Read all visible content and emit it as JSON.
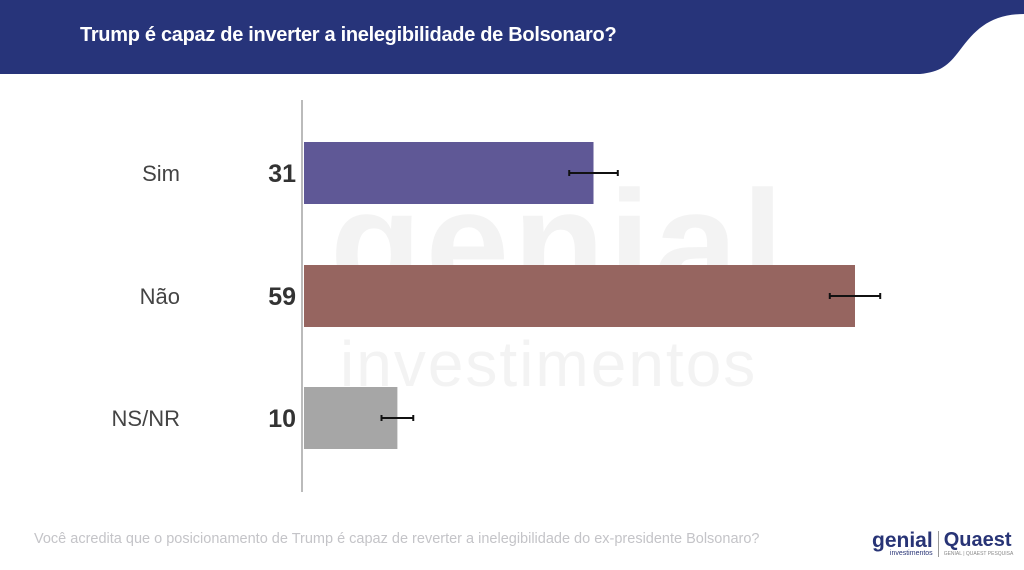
{
  "header": {
    "title": "Trump é capaz de inverter a inelegibilidade de Bolsonaro?",
    "color": "#27347a"
  },
  "footer": {
    "question": "Você acredita que o posicionamento de Trump é capaz de reverter a inelegibilidade do ex-presidente Bolsonaro?"
  },
  "watermark": {
    "line1": "genial",
    "line2": "investimentos"
  },
  "logos": {
    "genial": "genial",
    "genial_sub": "investimentos",
    "quaest": "Quaest",
    "quaest_sub": "GENIAL | QUAEST PESQUISA"
  },
  "chart_data": {
    "type": "bar",
    "orientation": "horizontal",
    "categories": [
      "Sim",
      "Não",
      "NS/NR"
    ],
    "values": [
      31,
      59,
      10
    ],
    "error_margin": [
      2.6,
      2.7,
      1.7
    ],
    "colors": [
      "#5f5896",
      "#966560",
      "#a6a6a6"
    ],
    "xlim": [
      0,
      59
    ],
    "grid": false
  }
}
